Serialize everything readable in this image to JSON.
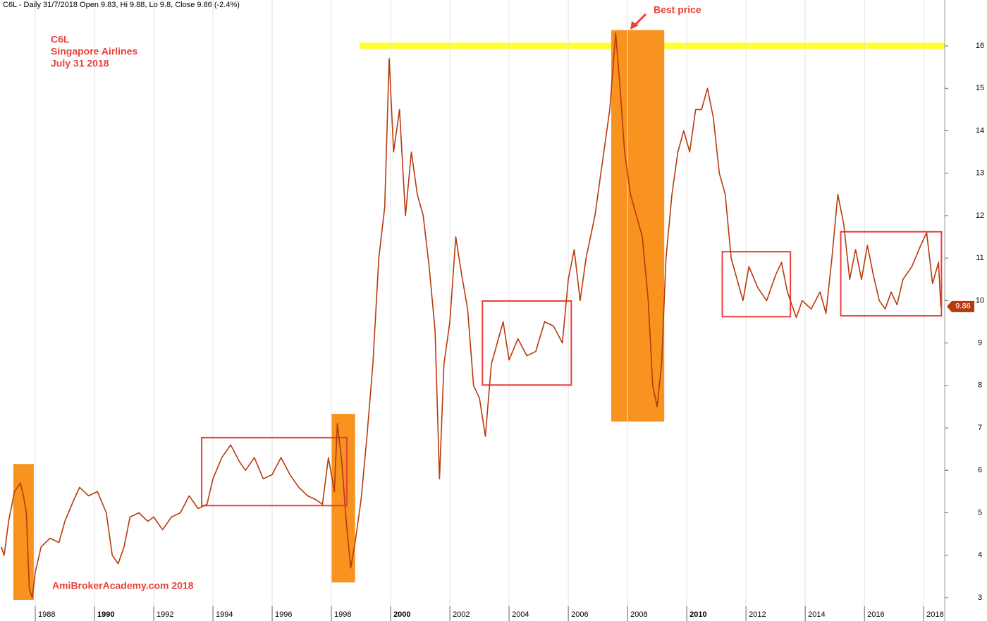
{
  "chart_data": {
    "type": "line",
    "header": "C6L - Daily 31/7/2018 Open 9.83, Hi 9.88, Lo 9.8, Close 9.86 (-2.4%)",
    "annotations": [
      "C6L",
      "Singapore Airlines",
      "July 31 2018"
    ],
    "callout": "Best price",
    "watermark": "AmiBrokerAcademy.com  2018",
    "xlim": [
      1986.81,
      2018.71
    ],
    "ylim": [
      2.8,
      17.08
    ],
    "xticks": [
      1988,
      1990,
      1992,
      1994,
      1996,
      1998,
      2000,
      2002,
      2004,
      2006,
      2008,
      2010,
      2012,
      2014,
      2016,
      2018
    ],
    "yticks": [
      3,
      4,
      5,
      6,
      7,
      8,
      9,
      10,
      11,
      12,
      13,
      14,
      15,
      16
    ],
    "grid": true,
    "series": [
      {
        "name": "C6L",
        "color": "#b83a0c",
        "x": [
          1986.85,
          1986.95,
          1987.1,
          1987.3,
          1987.5,
          1987.6,
          1987.7,
          1987.8,
          1987.9,
          1988.0,
          1988.2,
          1988.5,
          1988.8,
          1989.0,
          1989.3,
          1989.5,
          1989.8,
          1990.1,
          1990.4,
          1990.6,
          1990.8,
          1991.0,
          1991.2,
          1991.5,
          1991.8,
          1992.0,
          1992.3,
          1992.6,
          1992.9,
          1993.2,
          1993.5,
          1993.8,
          1994.0,
          1994.3,
          1994.6,
          1994.9,
          1995.1,
          1995.4,
          1995.7,
          1996.0,
          1996.3,
          1996.6,
          1996.9,
          1997.2,
          1997.5,
          1997.7,
          1997.9,
          1998.1,
          1998.2,
          1998.35,
          1998.5,
          1998.65,
          1998.8,
          1999.0,
          1999.2,
          1999.4,
          1999.6,
          1999.8,
          1999.95,
          2000.1,
          2000.3,
          2000.5,
          2000.7,
          2000.9,
          2001.1,
          2001.3,
          2001.5,
          2001.65,
          2001.8,
          2002.0,
          2002.2,
          2002.4,
          2002.6,
          2002.8,
          2003.0,
          2003.2,
          2003.4,
          2003.6,
          2003.8,
          2004.0,
          2004.3,
          2004.6,
          2004.9,
          2005.2,
          2005.5,
          2005.8,
          2006.0,
          2006.2,
          2006.4,
          2006.6,
          2006.9,
          2007.2,
          2007.4,
          2007.6,
          2007.75,
          2007.9,
          2008.1,
          2008.3,
          2008.5,
          2008.7,
          2008.85,
          2009.0,
          2009.15,
          2009.3,
          2009.5,
          2009.7,
          2009.9,
          2010.1,
          2010.3,
          2010.5,
          2010.7,
          2010.9,
          2011.1,
          2011.3,
          2011.5,
          2011.7,
          2011.9,
          2012.1,
          2012.4,
          2012.7,
          2013.0,
          2013.2,
          2013.4,
          2013.7,
          2013.9,
          2014.2,
          2014.5,
          2014.7,
          2014.9,
          2015.1,
          2015.3,
          2015.5,
          2015.7,
          2015.9,
          2016.1,
          2016.3,
          2016.5,
          2016.7,
          2016.9,
          2017.1,
          2017.3,
          2017.6,
          2017.9,
          2018.1,
          2018.3,
          2018.5,
          2018.58
        ],
        "values": [
          4.2,
          4.0,
          4.8,
          5.5,
          5.7,
          5.4,
          5.0,
          3.2,
          3.0,
          3.6,
          4.2,
          4.4,
          4.3,
          4.8,
          5.3,
          5.6,
          5.4,
          5.5,
          5.0,
          4.0,
          3.8,
          4.2,
          4.9,
          5.0,
          4.8,
          4.9,
          4.6,
          4.9,
          5.0,
          5.4,
          5.1,
          5.2,
          5.8,
          6.3,
          6.6,
          6.2,
          6.0,
          6.3,
          5.8,
          5.9,
          6.3,
          5.9,
          5.6,
          5.4,
          5.3,
          5.2,
          6.3,
          5.5,
          7.1,
          6.2,
          4.8,
          3.7,
          4.3,
          5.3,
          6.8,
          8.5,
          11.0,
          12.2,
          15.7,
          13.5,
          14.5,
          12.0,
          13.5,
          12.5,
          12.0,
          10.8,
          9.3,
          5.8,
          8.5,
          9.5,
          11.5,
          10.6,
          9.8,
          8.0,
          7.7,
          6.8,
          8.5,
          9.0,
          9.5,
          8.6,
          9.1,
          8.7,
          8.8,
          9.5,
          9.4,
          9.0,
          10.5,
          11.2,
          10.0,
          11.0,
          12.0,
          13.5,
          14.5,
          16.3,
          15.0,
          13.5,
          12.5,
          12.0,
          11.5,
          10.0,
          8.0,
          7.5,
          8.5,
          11.0,
          12.5,
          13.5,
          14.0,
          13.5,
          14.5,
          14.5,
          15.0,
          14.3,
          13.0,
          12.5,
          11.0,
          10.5,
          10.0,
          10.8,
          10.3,
          10.0,
          10.6,
          10.9,
          10.2,
          9.6,
          10.0,
          9.8,
          10.2,
          9.7,
          11.0,
          12.5,
          11.8,
          10.5,
          11.2,
          10.5,
          11.3,
          10.6,
          10.0,
          9.8,
          10.2,
          9.9,
          10.5,
          10.8,
          11.3,
          11.6,
          10.4,
          10.9,
          9.86
        ]
      }
    ],
    "hline": {
      "value": 16,
      "from": 1998.95,
      "color": "#ffff33"
    },
    "bands": {
      "color": "#f7931e",
      "regions": [
        {
          "x": [
            1987.26,
            1987.95
          ],
          "y": [
            2.95,
            6.15
          ]
        },
        {
          "x": [
            1998.0,
            1998.8
          ],
          "y": [
            3.36,
            7.33
          ]
        },
        {
          "x": [
            2007.45,
            2009.24
          ],
          "y": [
            7.15,
            16.37
          ]
        }
      ]
    },
    "boxes": {
      "color": "#e8403a",
      "regions": [
        {
          "x": [
            1993.62,
            1998.52
          ],
          "y": [
            5.17,
            6.77
          ]
        },
        {
          "x": [
            2003.1,
            2006.1
          ],
          "y": [
            8.01,
            9.99
          ]
        },
        {
          "x": [
            2011.2,
            2013.5
          ],
          "y": [
            9.62,
            11.15
          ]
        },
        {
          "x": [
            2015.2,
            2018.6
          ],
          "y": [
            9.64,
            11.62
          ]
        }
      ]
    }
  }
}
